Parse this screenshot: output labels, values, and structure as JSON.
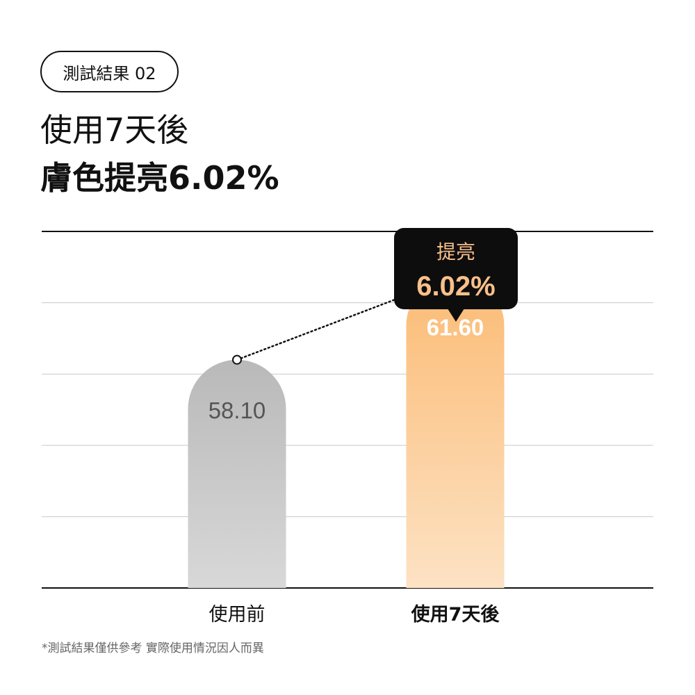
{
  "badge": "測試結果 02",
  "headline": {
    "line1": "使用7天後",
    "line2": "膚色提亮6.02%"
  },
  "callout": {
    "label": "提亮",
    "value": "6.02%"
  },
  "footnote": "*測試結果僅供參考 實際使用情況因人而異",
  "colors": {
    "before_bar_top": "#b9b9b9",
    "before_bar_bottom": "#d8d8d8",
    "after_bar_top": "#fbbb74",
    "after_bar_bottom": "#fde2c4",
    "callout_bg": "#0d0d0d",
    "callout_text": "#f9c08a",
    "before_value_text": "#555555",
    "after_value_text": "#ffffff"
  },
  "chart_data": {
    "type": "bar",
    "categories": [
      "使用前",
      "使用7天後"
    ],
    "values": [
      58.1,
      61.6
    ],
    "value_labels": [
      "58.10",
      "61.60"
    ],
    "title": "",
    "xlabel": "",
    "ylabel": "",
    "ylim": [
      48.5,
      63.5
    ],
    "grid": true,
    "annotation": "提亮 6.02%"
  }
}
